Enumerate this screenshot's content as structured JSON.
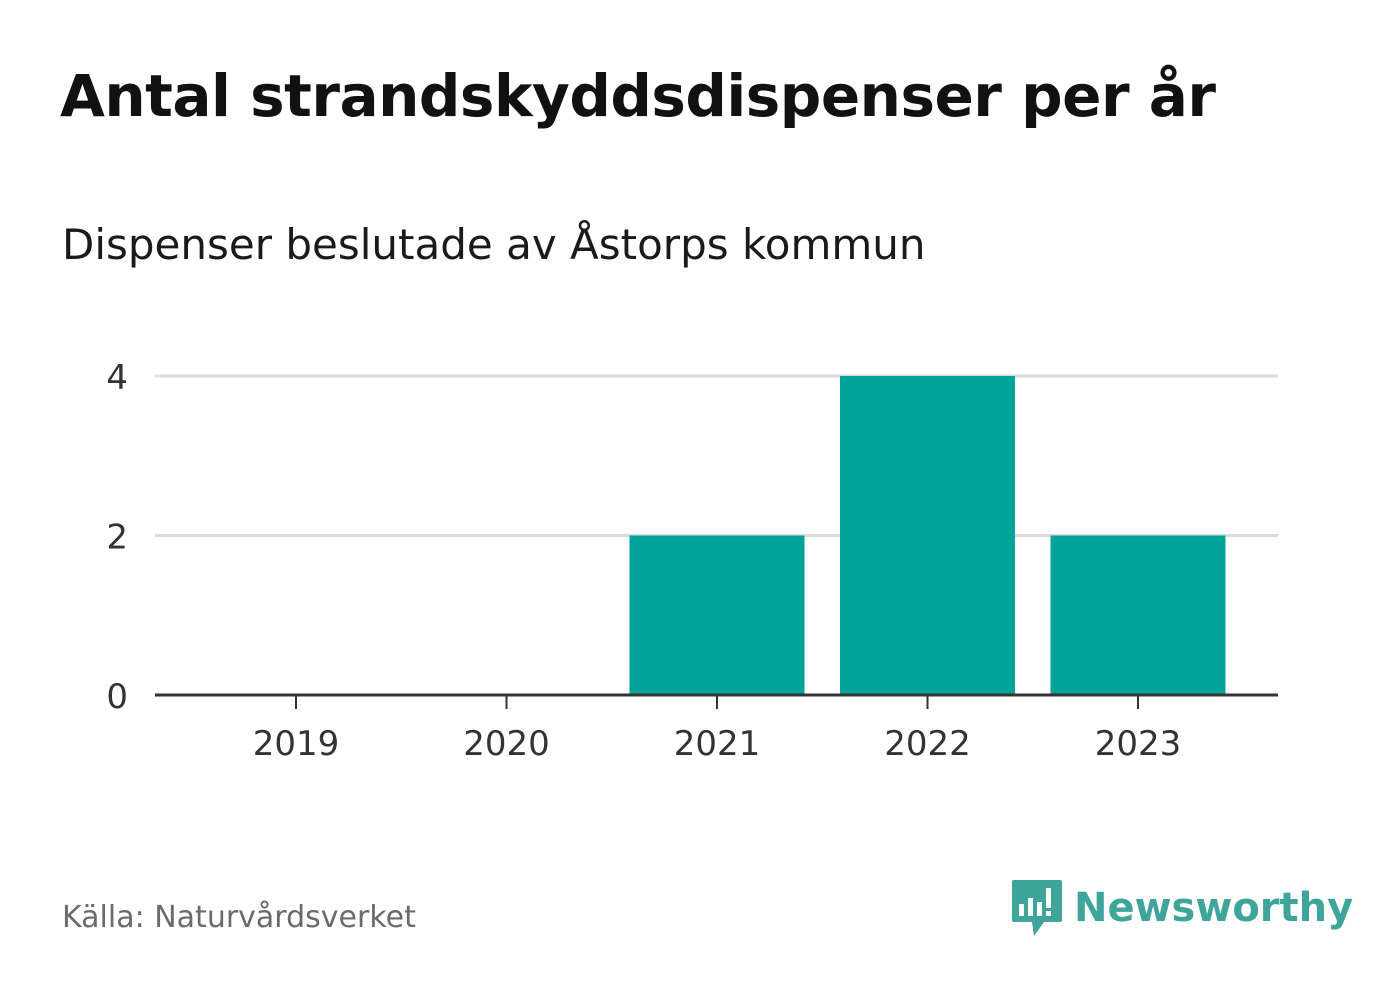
{
  "chart_data": {
    "type": "bar",
    "title": "Antal strandskyddsdispenser per år",
    "subtitle": "Dispenser beslutade av Åstorps kommun",
    "categories": [
      "2019",
      "2020",
      "2021",
      "2022",
      "2023"
    ],
    "values": [
      0,
      0,
      2,
      4,
      2
    ],
    "xlabel": "",
    "ylabel": "",
    "ylim": [
      0,
      4
    ],
    "yticks": [
      0,
      2,
      4
    ],
    "grid": true,
    "bar_color": "#00a398",
    "grid_color": "#dcdcdc",
    "axis_color": "#333333"
  },
  "source": "Källa: Naturvårdsverket",
  "brand": {
    "name": "Newsworthy",
    "icon": "newsworthy-logo-icon",
    "color": "#3fa59a"
  }
}
